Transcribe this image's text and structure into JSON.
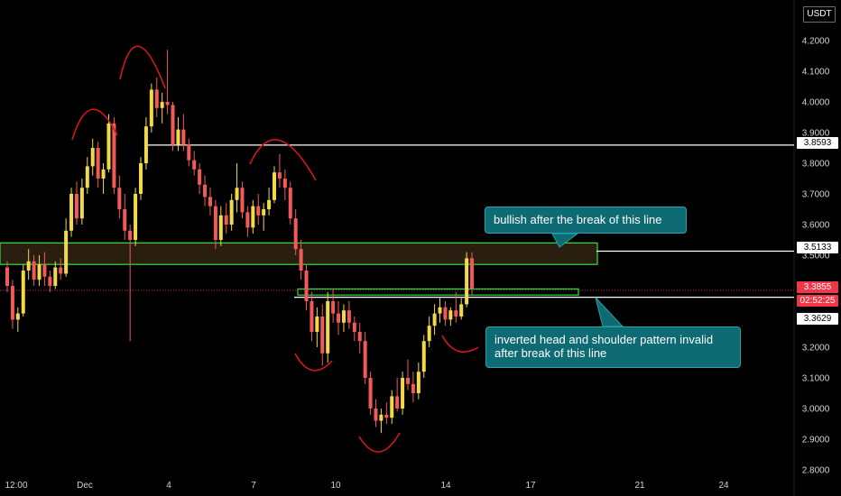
{
  "currency_badge": "USDT",
  "notes": {
    "bullish": "bullish after the break of this line",
    "invalid": "inverted head and shoulder pattern invalid\n after break of this line"
  },
  "price_tags": {
    "upper_line": "3.8593",
    "resistance_line": "3.5133",
    "last_price": "3.3855",
    "countdown": "02:52:25",
    "neckline": "3.3629"
  },
  "colors": {
    "background": "#000000",
    "candle_up": "#f2d94a",
    "candle_down": "#f25a5a",
    "zone_outline": "#2ee23a",
    "zone_fill": "#2a1e10",
    "annotation_arc": "#d51818",
    "note_fill": "#0e6a73",
    "horizontal_line": "#ffffff"
  },
  "chart_data": {
    "type": "candlestick",
    "title": "",
    "xlabel": "",
    "ylabel": "",
    "ylim": [
      2.77,
      4.31
    ],
    "y_ticks": [
      "4.2000",
      "4.1000",
      "4.0000",
      "3.9000",
      "3.8000",
      "3.7000",
      "3.6000",
      "3.5000",
      "3.4000",
      "3.3000",
      "3.2000",
      "3.1000",
      "3.0000",
      "2.9000",
      "2.8000"
    ],
    "x_ticks": [
      "12:00",
      "Dec",
      "4",
      "7",
      "10",
      "14",
      "17",
      "21",
      "24"
    ],
    "horizontal_lines": [
      {
        "label": "upper_line",
        "value": 3.8593
      },
      {
        "label": "resistance_line",
        "value": 3.5133
      },
      {
        "label": "neckline",
        "value": 3.3629
      }
    ],
    "zones": [
      {
        "name": "resistance zone",
        "from": 3.47,
        "to": 3.54
      },
      {
        "name": "neckline zone",
        "from": 3.37,
        "to": 3.39
      }
    ],
    "last_price": 3.3855,
    "candles": [
      [
        3.46,
        3.48,
        3.38,
        3.4
      ],
      [
        3.4,
        3.42,
        3.26,
        3.29
      ],
      [
        3.29,
        3.33,
        3.25,
        3.31
      ],
      [
        3.31,
        3.47,
        3.3,
        3.45
      ],
      [
        3.45,
        3.52,
        3.42,
        3.48
      ],
      [
        3.48,
        3.5,
        3.4,
        3.42
      ],
      [
        3.42,
        3.5,
        3.4,
        3.47
      ],
      [
        3.47,
        3.51,
        3.4,
        3.43
      ],
      [
        3.43,
        3.45,
        3.38,
        3.4
      ],
      [
        3.4,
        3.48,
        3.39,
        3.46
      ],
      [
        3.46,
        3.49,
        3.42,
        3.44
      ],
      [
        3.44,
        3.62,
        3.43,
        3.58
      ],
      [
        3.58,
        3.72,
        3.56,
        3.7
      ],
      [
        3.7,
        3.74,
        3.6,
        3.62
      ],
      [
        3.62,
        3.75,
        3.6,
        3.72
      ],
      [
        3.72,
        3.82,
        3.7,
        3.79
      ],
      [
        3.79,
        3.88,
        3.76,
        3.85
      ],
      [
        3.85,
        3.87,
        3.72,
        3.75
      ],
      [
        3.75,
        3.8,
        3.7,
        3.78
      ],
      [
        3.78,
        3.96,
        3.77,
        3.93
      ],
      [
        3.93,
        3.95,
        3.7,
        3.72
      ],
      [
        3.72,
        3.76,
        3.62,
        3.65
      ],
      [
        3.65,
        3.7,
        3.55,
        3.58
      ],
      [
        3.58,
        3.6,
        3.22,
        3.55
      ],
      [
        3.55,
        3.72,
        3.53,
        3.7
      ],
      [
        3.7,
        3.82,
        3.68,
        3.8
      ],
      [
        3.8,
        3.95,
        3.78,
        3.92
      ],
      [
        3.92,
        4.06,
        3.9,
        4.04
      ],
      [
        4.04,
        4.08,
        3.95,
        3.98
      ],
      [
        3.98,
        4.03,
        3.93,
        4.0
      ],
      [
        4.0,
        4.17,
        3.96,
        3.99
      ],
      [
        3.99,
        4.0,
        3.84,
        3.86
      ],
      [
        3.86,
        3.95,
        3.84,
        3.91
      ],
      [
        3.91,
        3.96,
        3.84,
        3.86
      ],
      [
        3.86,
        3.88,
        3.79,
        3.81
      ],
      [
        3.81,
        3.84,
        3.76,
        3.78
      ],
      [
        3.78,
        3.8,
        3.7,
        3.73
      ],
      [
        3.73,
        3.76,
        3.66,
        3.69
      ],
      [
        3.69,
        3.72,
        3.63,
        3.66
      ],
      [
        3.66,
        3.68,
        3.52,
        3.55
      ],
      [
        3.55,
        3.66,
        3.53,
        3.63
      ],
      [
        3.63,
        3.67,
        3.57,
        3.6
      ],
      [
        3.6,
        3.7,
        3.58,
        3.68
      ],
      [
        3.68,
        3.8,
        3.64,
        3.72
      ],
      [
        3.72,
        3.74,
        3.62,
        3.64
      ],
      [
        3.64,
        3.66,
        3.56,
        3.59
      ],
      [
        3.59,
        3.68,
        3.57,
        3.66
      ],
      [
        3.66,
        3.7,
        3.6,
        3.63
      ],
      [
        3.63,
        3.67,
        3.58,
        3.65
      ],
      [
        3.65,
        3.72,
        3.63,
        3.68
      ],
      [
        3.68,
        3.79,
        3.67,
        3.77
      ],
      [
        3.77,
        3.83,
        3.72,
        3.75
      ],
      [
        3.75,
        3.78,
        3.68,
        3.72
      ],
      [
        3.72,
        3.74,
        3.6,
        3.62
      ],
      [
        3.62,
        3.65,
        3.5,
        3.52
      ],
      [
        3.52,
        3.55,
        3.42,
        3.45
      ],
      [
        3.45,
        3.47,
        3.32,
        3.35
      ],
      [
        3.35,
        3.38,
        3.22,
        3.25
      ],
      [
        3.25,
        3.33,
        3.2,
        3.3
      ],
      [
        3.3,
        3.34,
        3.14,
        3.18
      ],
      [
        3.18,
        3.38,
        3.15,
        3.35
      ],
      [
        3.35,
        3.39,
        3.28,
        3.31
      ],
      [
        3.31,
        3.35,
        3.24,
        3.28
      ],
      [
        3.28,
        3.34,
        3.25,
        3.32
      ],
      [
        3.32,
        3.35,
        3.26,
        3.28
      ],
      [
        3.28,
        3.3,
        3.22,
        3.25
      ],
      [
        3.25,
        3.28,
        3.18,
        3.22
      ],
      [
        3.22,
        3.25,
        3.08,
        3.1
      ],
      [
        3.1,
        3.12,
        2.98,
        3.0
      ],
      [
        3.0,
        3.03,
        2.94,
        2.96
      ],
      [
        2.96,
        3.0,
        2.92,
        2.98
      ],
      [
        2.98,
        3.02,
        2.95,
        2.97
      ],
      [
        2.97,
        3.06,
        2.95,
        3.04
      ],
      [
        3.04,
        3.1,
        2.99,
        3.0
      ],
      [
        3.0,
        3.12,
        2.98,
        3.1
      ],
      [
        3.1,
        3.16,
        3.06,
        3.08
      ],
      [
        3.08,
        3.12,
        3.02,
        3.05
      ],
      [
        3.05,
        3.15,
        3.03,
        3.12
      ],
      [
        3.12,
        3.24,
        3.1,
        3.22
      ],
      [
        3.22,
        3.3,
        3.2,
        3.27
      ],
      [
        3.27,
        3.34,
        3.24,
        3.31
      ],
      [
        3.31,
        3.36,
        3.28,
        3.33
      ],
      [
        3.33,
        3.35,
        3.27,
        3.29
      ],
      [
        3.29,
        3.33,
        3.27,
        3.32
      ],
      [
        3.32,
        3.38,
        3.28,
        3.3
      ],
      [
        3.3,
        3.36,
        3.29,
        3.34
      ],
      [
        3.34,
        3.51,
        3.33,
        3.49
      ],
      [
        3.49,
        3.51,
        3.37,
        3.39
      ]
    ]
  }
}
